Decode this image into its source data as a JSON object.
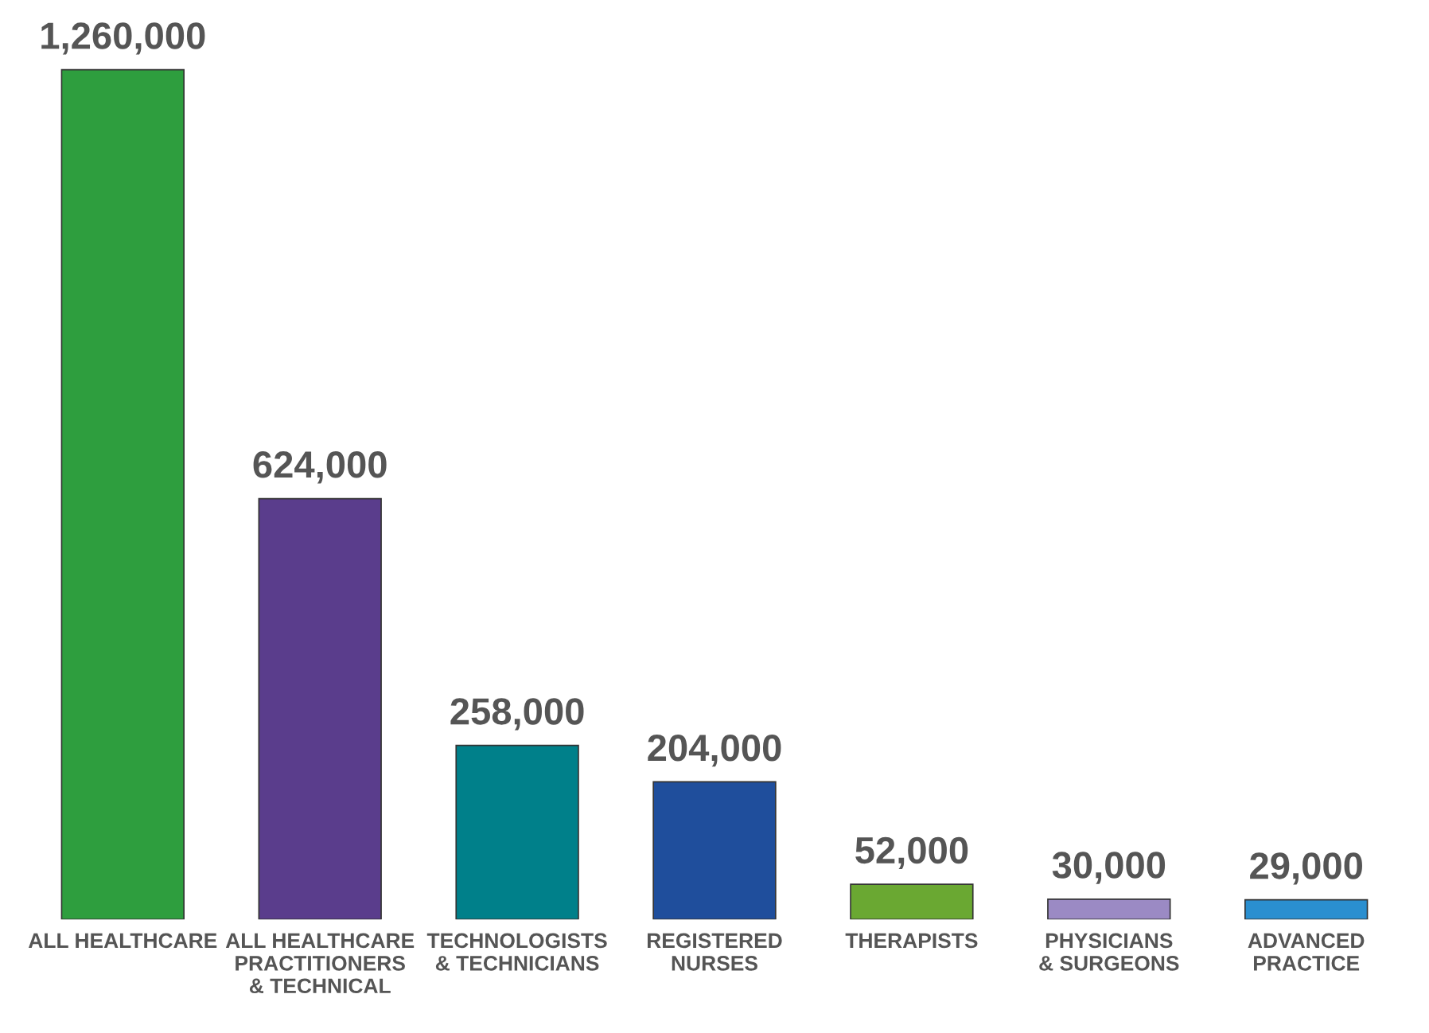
{
  "chart_data": {
    "type": "bar",
    "categories": [
      "ALL HEALTHCARE",
      "ALL HEALTHCARE\nPRACTITIONERS\n& TECHNICAL",
      "TECHNOLOGISTS\n& TECHNICIANS",
      "REGISTERED\nNURSES",
      "THERAPISTS",
      "PHYSICIANS\n& SURGEONS",
      "ADVANCED\nPRACTICE"
    ],
    "values": [
      1260000,
      624000,
      258000,
      204000,
      52000,
      30000,
      29000
    ],
    "value_labels": [
      "1,260,000",
      "624,000",
      "258,000",
      "204,000",
      "52,000",
      "30,000",
      "29,000"
    ],
    "colors": [
      "#2e9e3e",
      "#5a3d8c",
      "#00808a",
      "#1f4e9c",
      "#6aa832",
      "#9b8ac4",
      "#2a8fd0"
    ],
    "grid": false,
    "legend": false
  }
}
